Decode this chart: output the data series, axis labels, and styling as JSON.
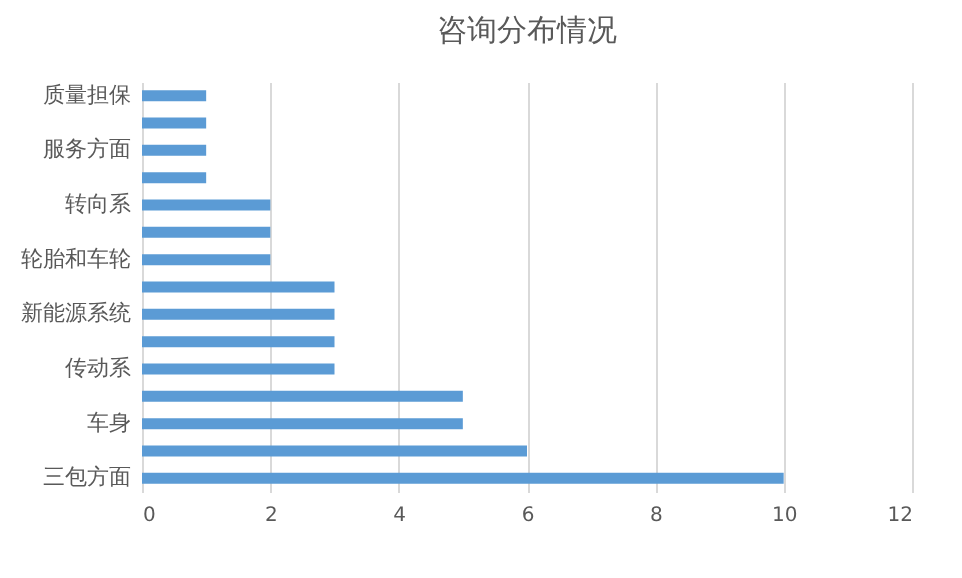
{
  "chart_data": {
    "type": "bar",
    "orientation": "horizontal",
    "title": "咨询分布情况",
    "categories": [
      "质量担保",
      null,
      "服务方面",
      null,
      "转向系",
      null,
      "轮胎和车轮",
      null,
      "新能源系统",
      null,
      "传动系",
      null,
      "车身",
      null,
      "三包方面"
    ],
    "values": [
      1,
      1,
      1,
      1,
      2,
      2,
      2,
      3,
      3,
      3,
      3,
      5,
      5,
      6,
      10
    ],
    "color": "#5b9bd5",
    "xlim": [
      0,
      12
    ],
    "xticks": [
      0,
      2,
      4,
      6,
      8,
      10,
      12
    ],
    "grid": "x"
  }
}
